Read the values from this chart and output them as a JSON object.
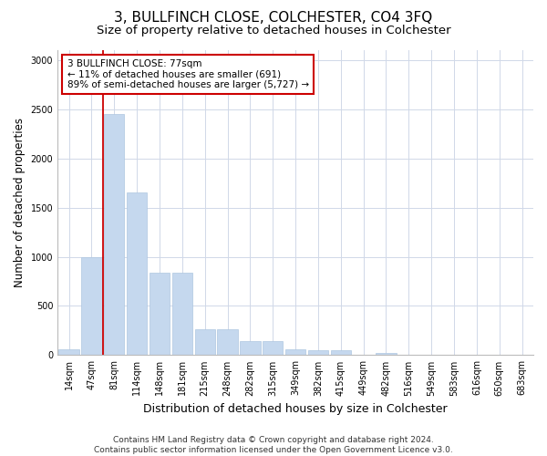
{
  "title": "3, BULLFINCH CLOSE, COLCHESTER, CO4 3FQ",
  "subtitle": "Size of property relative to detached houses in Colchester",
  "xlabel": "Distribution of detached houses by size in Colchester",
  "ylabel": "Number of detached properties",
  "categories": [
    "14sqm",
    "47sqm",
    "81sqm",
    "114sqm",
    "148sqm",
    "181sqm",
    "215sqm",
    "248sqm",
    "282sqm",
    "315sqm",
    "349sqm",
    "382sqm",
    "415sqm",
    "449sqm",
    "482sqm",
    "516sqm",
    "549sqm",
    "583sqm",
    "616sqm",
    "650sqm",
    "683sqm"
  ],
  "values": [
    60,
    1000,
    2450,
    1650,
    840,
    840,
    260,
    260,
    140,
    140,
    60,
    50,
    50,
    5,
    25,
    5,
    0,
    0,
    0,
    0,
    0
  ],
  "bar_color": "#c5d8ee",
  "bar_edge_color": "#aec6e0",
  "property_line_index": 1.5,
  "annotation_text": "3 BULLFINCH CLOSE: 77sqm\n← 11% of detached houses are smaller (691)\n89% of semi-detached houses are larger (5,727) →",
  "annotation_box_facecolor": "#ffffff",
  "annotation_box_edgecolor": "#cc0000",
  "property_line_color": "#cc0000",
  "footer_line1": "Contains HM Land Registry data © Crown copyright and database right 2024.",
  "footer_line2": "Contains public sector information licensed under the Open Government Licence v3.0.",
  "ylim": [
    0,
    3100
  ],
  "yticks": [
    0,
    500,
    1000,
    1500,
    2000,
    2500,
    3000
  ],
  "title_fontsize": 11,
  "subtitle_fontsize": 9.5,
  "ylabel_fontsize": 8.5,
  "xlabel_fontsize": 9,
  "tick_fontsize": 7,
  "annotation_fontsize": 7.5,
  "footer_fontsize": 6.5,
  "grid_color": "#d0d8e8",
  "background_color": "#ffffff"
}
